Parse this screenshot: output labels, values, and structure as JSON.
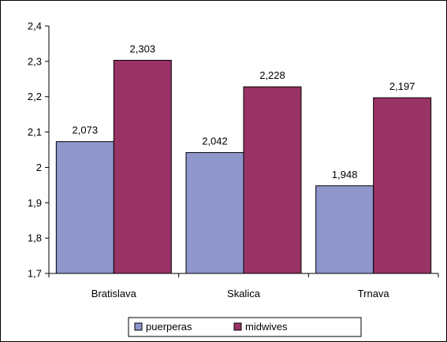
{
  "chart_data": {
    "type": "bar",
    "categories": [
      "Bratislava",
      "Skalica",
      "Trnava"
    ],
    "series": [
      {
        "name": "puerperas",
        "values": [
          2.073,
          2.042,
          1.948
        ],
        "labels": [
          "2,073",
          "2,042",
          "1,948"
        ],
        "color": "#8E96CC"
      },
      {
        "name": "midwives",
        "values": [
          2.303,
          2.228,
          2.197
        ],
        "labels": [
          "2,303",
          "2,228",
          "2,197"
        ],
        "color": "#993366"
      }
    ],
    "ylim": [
      1.7,
      2.4
    ],
    "yticks": [
      1.7,
      1.8,
      1.9,
      2.0,
      2.1,
      2.2,
      2.3,
      2.4
    ],
    "ytick_labels": [
      "1,7",
      "1,8",
      "1,9",
      "2",
      "2,1",
      "2,2",
      "2,3",
      "2,4"
    ],
    "title": "",
    "xlabel": "",
    "ylabel": "",
    "legend_position": "bottom",
    "grid": false
  }
}
